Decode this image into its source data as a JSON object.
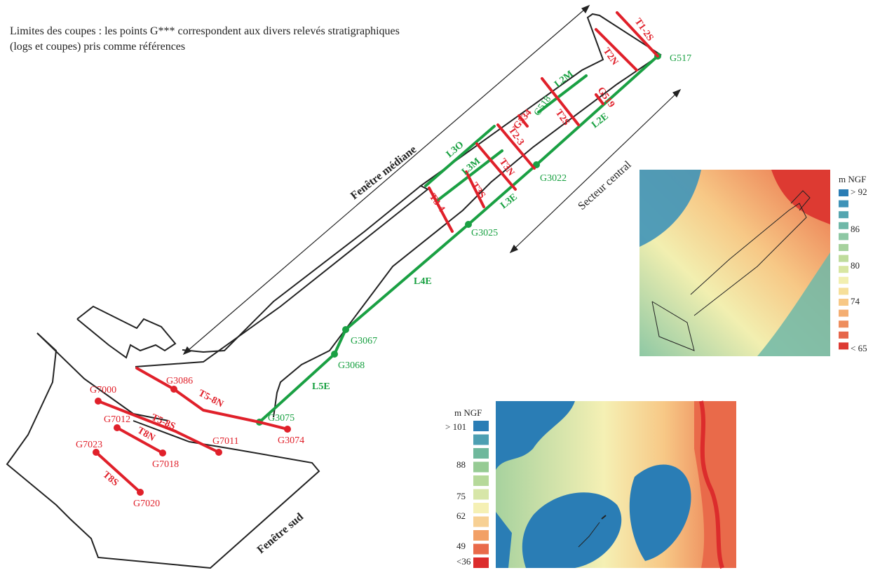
{
  "caption": "Limites des coupes : les points G*** correspondent aux divers relevés stratigraphiques (logs et coupes) pris comme références",
  "zones": {
    "fenetre_mediane": "Fenêtre médiane",
    "secteur_central": "Secteur central",
    "fenetre_sud": "Fenêtre sud"
  },
  "points_green": [
    "G517",
    "G3022",
    "G3025",
    "G3067",
    "G3068",
    "G3075"
  ],
  "points_red": [
    "G3086",
    "G3074",
    "G7000",
    "G7011",
    "G7012",
    "G7018",
    "G7023",
    "G7020"
  ],
  "section_labels_red": [
    "T1-2S",
    "T2N",
    "G519",
    "T2S",
    "G534",
    "T2-3",
    "T3N",
    "T3S",
    "T3-4",
    "T5-8N",
    "T5-8S",
    "T8N",
    "T8S"
  ],
  "section_labels_green": [
    "L2M",
    "G518",
    "L2E",
    "L3O",
    "L3M",
    "L3E",
    "L4E",
    "L5E"
  ],
  "legend_small": {
    "unit": "m NGF",
    "labels": [
      "> 92",
      "86",
      "80",
      "74",
      "< 65"
    ],
    "colors": [
      "#2a7db5",
      "#3f93b8",
      "#55a6b0",
      "#6fb8a8",
      "#8ec8a4",
      "#a7d29e",
      "#bfdc9c",
      "#d8e6a2",
      "#f2efb0",
      "#f6df9a",
      "#f7c886",
      "#f4ae72",
      "#ee8e5e",
      "#e6664a",
      "#dd3a32"
    ]
  },
  "legend_large": {
    "unit": "m NGF",
    "labels": [
      "> 101",
      "88",
      "75",
      "62",
      "49",
      "<36"
    ],
    "colors": [
      "#2a7db5",
      "#4d9fb2",
      "#6fb89c",
      "#96cb94",
      "#b6d99a",
      "#d7e6a8",
      "#f5f0b4",
      "#f7d094",
      "#f2a066",
      "#e96a4a",
      "#dc2c2c"
    ]
  }
}
